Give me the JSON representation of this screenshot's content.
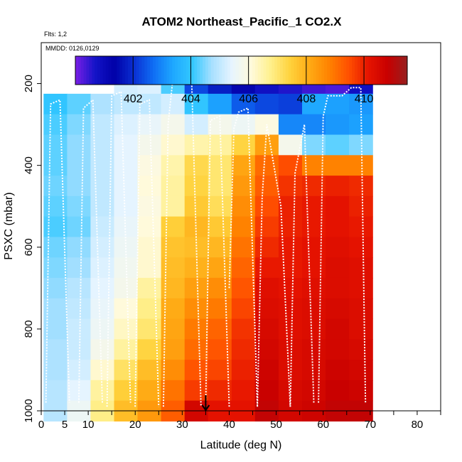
{
  "chart_data": {
    "type": "heatmap",
    "title": "ATOM2 Northeast_Pacific_1 CO2.X",
    "flights_label": "Flts: 1,2",
    "dates_label": "MMDD: 0126,0129",
    "xlabel": "Latitude (deg N)",
    "ylabel": "PSXC (mbar)",
    "xlim": [
      0,
      85
    ],
    "ylim": [
      1000,
      100
    ],
    "x_ticks": [
      0,
      5,
      10,
      15,
      20,
      25,
      30,
      35,
      40,
      45,
      50,
      55,
      60,
      65,
      70,
      75,
      80,
      85
    ],
    "x_tick_labels": [
      "0",
      "5",
      "10",
      "",
      "20",
      "",
      "30",
      "",
      "40",
      "",
      "50",
      "",
      "60",
      "",
      "70",
      "",
      "80",
      ""
    ],
    "y_ticks": [
      200,
      400,
      600,
      800,
      1000
    ],
    "y_tick_labels": [
      "200",
      "400",
      "600",
      "800",
      "1000"
    ],
    "colorbar": {
      "min": 400,
      "max": 411.5,
      "ticks": [
        402,
        404,
        406,
        408,
        410
      ],
      "tick_labels": [
        "402",
        "404",
        "406",
        "408",
        "410"
      ],
      "colors": [
        "#7a1fe6",
        "#1414c8",
        "#0000a8",
        "#0a2fd2",
        "#0f6ef5",
        "#1ea8ff",
        "#33c8ff",
        "#a8e0ff",
        "#e6f4ff",
        "#fffadc",
        "#fff08c",
        "#ffd23c",
        "#ffaa14",
        "#ff8200",
        "#ff5000",
        "#e61400",
        "#c80000",
        "#962020"
      ]
    },
    "marker": {
      "latitude": 35,
      "pressure": 1000
    },
    "lat_bins": [
      3,
      8,
      13,
      18,
      23,
      28,
      33,
      38,
      43,
      48,
      53,
      58,
      63,
      68
    ],
    "pressure_bins": [
      200,
      250,
      300,
      350,
      400,
      450,
      500,
      550,
      600,
      650,
      700,
      750,
      800,
      850,
      900,
      950,
      1000
    ],
    "values": [
      [
        null,
        null,
        null,
        405.2,
        405.3,
        404.2,
        402.3,
        401.8,
        401.2,
        400.8,
        400.6,
        400.4,
        400.3,
        400.8
      ],
      [
        404.0,
        404.3,
        404.8,
        405.0,
        405.0,
        405.2,
        404.0,
        403.3,
        402.5,
        402.3,
        402.2,
        403.4,
        403.3,
        403.2
      ],
      [
        404.2,
        404.5,
        405.0,
        405.3,
        405.5,
        405.8,
        405.2,
        405.8,
        405.6,
        406.0,
        403.0,
        403.0,
        403.2,
        403.3
      ],
      [
        404.3,
        404.6,
        405.0,
        405.4,
        405.8,
        406.2,
        406.5,
        406.6,
        407.4,
        408.3,
        405.8,
        404.5,
        404.3,
        404.5
      ],
      [
        404.3,
        404.6,
        405.0,
        405.4,
        406.0,
        406.5,
        407.3,
        407.0,
        408.2,
        409.1,
        409.5,
        408.8,
        408.8,
        408.8
      ],
      [
        404.4,
        404.6,
        405.0,
        405.4,
        406.1,
        406.6,
        407.4,
        407.0,
        408.4,
        409.3,
        409.8,
        409.9,
        410.0,
        409.9
      ],
      [
        404.3,
        404.5,
        405.0,
        405.4,
        406.0,
        406.6,
        407.6,
        407.2,
        408.6,
        409.5,
        410.0,
        410.1,
        410.2,
        410.0
      ],
      [
        404.2,
        404.4,
        405.1,
        405.5,
        406.1,
        407.5,
        407.9,
        407.6,
        408.8,
        409.7,
        410.0,
        410.1,
        410.2,
        410.1
      ],
      [
        404.4,
        404.6,
        405.2,
        405.6,
        406.2,
        407.7,
        407.8,
        407.9,
        409.0,
        409.9,
        410.1,
        410.2,
        410.3,
        410.2
      ],
      [
        404.5,
        404.7,
        405.3,
        405.7,
        406.2,
        407.8,
        408.0,
        408.2,
        409.2,
        410.1,
        410.1,
        410.2,
        410.4,
        410.3
      ],
      [
        404.6,
        404.9,
        405.4,
        405.8,
        406.6,
        407.9,
        408.3,
        408.6,
        409.4,
        410.3,
        410.2,
        410.3,
        410.4,
        410.3
      ],
      [
        404.7,
        405.0,
        405.5,
        406.1,
        406.8,
        408.1,
        408.6,
        408.9,
        409.6,
        410.4,
        410.3,
        410.4,
        410.5,
        410.4
      ],
      [
        404.7,
        405.1,
        405.6,
        406.3,
        407.0,
        408.2,
        408.9,
        409.2,
        409.8,
        410.5,
        410.3,
        410.4,
        410.6,
        410.4
      ],
      [
        404.8,
        405.1,
        405.8,
        406.6,
        407.4,
        408.3,
        409.1,
        409.4,
        409.9,
        410.6,
        410.4,
        410.5,
        410.6,
        410.5
      ],
      [
        404.8,
        405.2,
        406.2,
        407.1,
        407.8,
        408.6,
        409.4,
        409.6,
        410.0,
        410.7,
        410.4,
        410.5,
        410.7,
        410.6
      ],
      [
        404.9,
        405.4,
        406.6,
        407.5,
        408.1,
        409.0,
        409.7,
        409.9,
        410.1,
        410.8,
        410.5,
        410.6,
        410.8,
        410.7
      ],
      [
        404.9,
        405.6,
        406.8,
        407.8,
        408.4,
        409.3,
        410.6,
        410.2,
        410.2,
        410.9,
        410.6,
        410.7,
        410.9,
        410.9
      ]
    ],
    "profiles": [
      [
        [
          1,
          980
        ],
        [
          2,
          250
        ],
        [
          4,
          240
        ],
        [
          6,
          980
        ]
      ],
      [
        [
          8,
          980
        ],
        [
          9,
          260
        ],
        [
          11,
          240
        ],
        [
          13,
          980
        ]
      ],
      [
        [
          14,
          990
        ],
        [
          15,
          230
        ],
        [
          17,
          220
        ],
        [
          19,
          980
        ]
      ],
      [
        [
          20,
          990
        ],
        [
          21,
          250
        ],
        [
          23,
          240
        ],
        [
          25,
          990
        ]
      ],
      [
        [
          26,
          990
        ],
        [
          27,
          300
        ],
        [
          28,
          190
        ],
        [
          32,
          190
        ],
        [
          34,
          990
        ]
      ],
      [
        [
          35,
          990
        ],
        [
          36,
          290
        ],
        [
          38,
          280
        ],
        [
          40,
          990
        ]
      ],
      [
        [
          40,
          700
        ],
        [
          41,
          310
        ],
        [
          42,
          270
        ],
        [
          44,
          260
        ],
        [
          46,
          990
        ]
      ],
      [
        [
          46,
          990
        ],
        [
          47,
          480
        ],
        [
          48,
          300
        ],
        [
          51,
          500
        ],
        [
          53,
          990
        ]
      ],
      [
        [
          53,
          990
        ],
        [
          54,
          420
        ],
        [
          56,
          300
        ],
        [
          58,
          980
        ]
      ],
      [
        [
          59,
          980
        ],
        [
          60,
          280
        ],
        [
          61,
          230
        ],
        [
          64,
          230
        ],
        [
          66,
          210
        ],
        [
          68,
          210
        ],
        [
          69,
          980
        ]
      ]
    ]
  }
}
